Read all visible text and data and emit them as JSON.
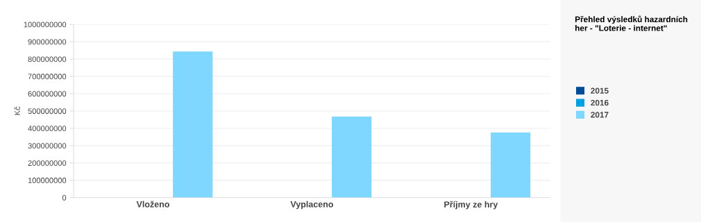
{
  "chart_data": {
    "type": "bar",
    "title": "Přehled výsledků hazardních\nher - \"Loterie - internet\"",
    "ylabel": "Kč",
    "categories": [
      "Vloženo",
      "Vyplaceno",
      "Příjmy ze hry"
    ],
    "series": [
      {
        "name": "2015",
        "color": "#004a99",
        "values": [
          null,
          null,
          null
        ]
      },
      {
        "name": "2016",
        "color": "#009ee3",
        "values": [
          null,
          null,
          null
        ]
      },
      {
        "name": "2017",
        "color": "#7fd6ff",
        "values": [
          844000000,
          468000000,
          376000000
        ]
      }
    ],
    "ylim": [
      0,
      1000000000
    ],
    "yticks": [
      0,
      100000000,
      200000000,
      300000000,
      400000000,
      500000000,
      600000000,
      700000000,
      800000000,
      900000000,
      1000000000
    ],
    "grid": "y",
    "legend": "right"
  }
}
